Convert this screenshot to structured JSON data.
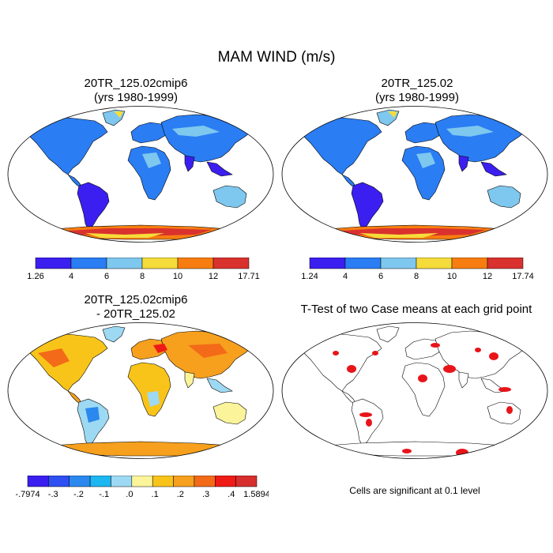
{
  "title": "MAM WIND (m/s)",
  "panels": [
    {
      "id": "cmip6",
      "title_line1": "20TR_125.02cmip6",
      "title_line2": "(yrs 1980-1999)",
      "colorbar": {
        "colors": [
          "#3b1ff0",
          "#2a7df3",
          "#7ec7ee",
          "#f6dc3a",
          "#f77d10",
          "#d9312e"
        ],
        "labels": [
          "1.26",
          "4",
          "6",
          "8",
          "10",
          "12",
          "17.71"
        ]
      }
    },
    {
      "id": "base",
      "title_line1": "20TR_125.02",
      "title_line2": "(yrs 1980-1999)",
      "colorbar": {
        "colors": [
          "#3b1ff0",
          "#2a7df3",
          "#7ec7ee",
          "#f6dc3a",
          "#f77d10",
          "#d9312e"
        ],
        "labels": [
          "1.24",
          "4",
          "6",
          "8",
          "10",
          "12",
          "17.74"
        ]
      }
    },
    {
      "id": "diff",
      "title_line1": "20TR_125.02cmip6",
      "title_line2": "- 20TR_125.02",
      "colorbar": {
        "colors": [
          "#3a1ef0",
          "#2e4ff2",
          "#2a88ee",
          "#1cb6f0",
          "#9dd9f2",
          "#fbf49a",
          "#f8c41a",
          "#f6a01e",
          "#f36a18",
          "#ef1b16",
          "#d62f2e"
        ],
        "labels": [
          "-.7974",
          "-.3",
          "-.2",
          "-.1",
          ".0",
          ".1",
          ".2",
          ".3",
          ".4",
          "1.5894"
        ]
      }
    },
    {
      "id": "ttest",
      "title_line1": "T-Test of two Case means at each grid point",
      "title_line2": "",
      "note": "Cells are significant at 0.1 level",
      "signif_color": "#e8141a"
    }
  ]
}
